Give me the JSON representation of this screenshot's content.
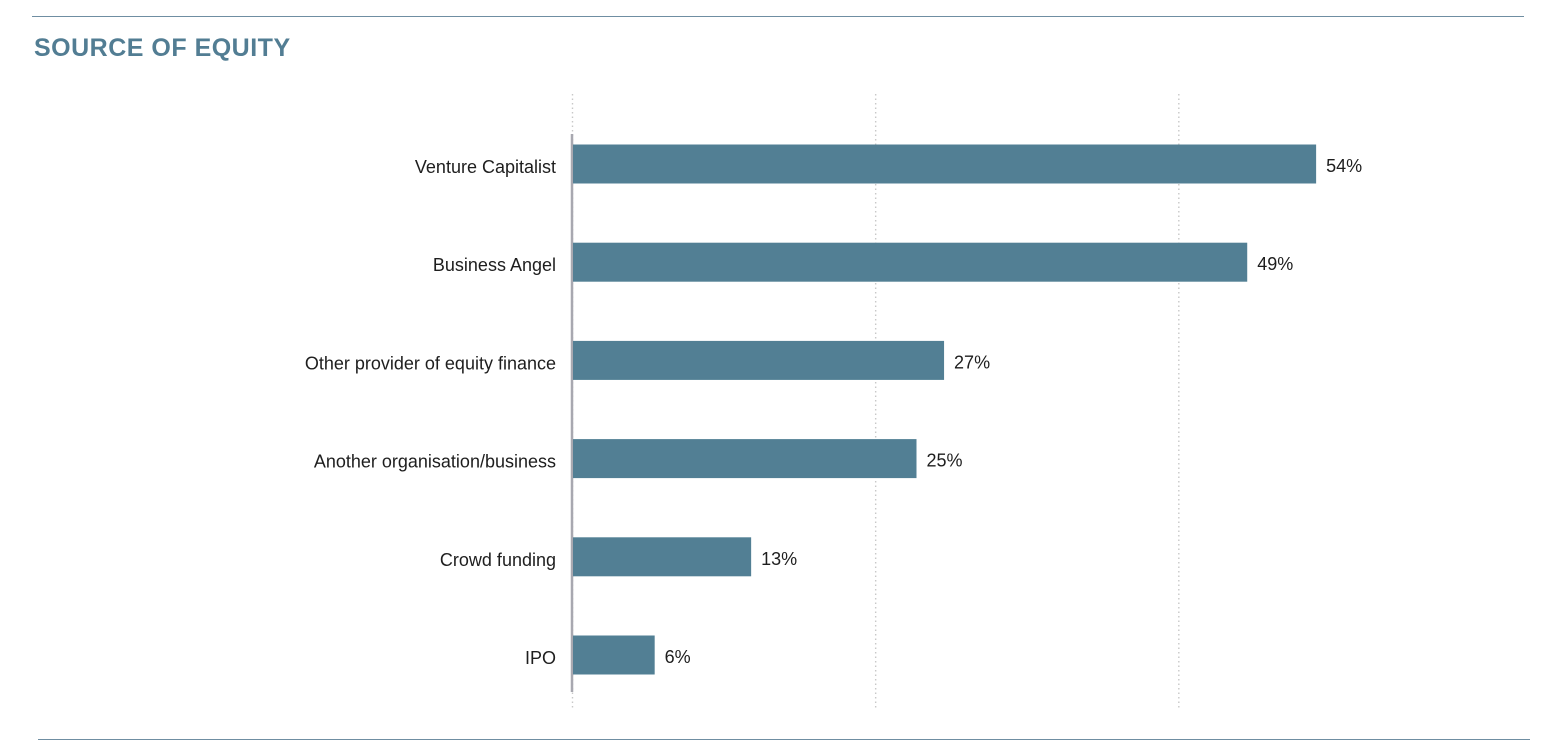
{
  "colors": {
    "accent": "#527d93",
    "bar": "#527f94",
    "rule": "#6f8ea2",
    "grid": "#c8c8c8",
    "axis": "#a8a8b0",
    "text": "#1e1e1e"
  },
  "chart_data": {
    "type": "bar",
    "orientation": "horizontal",
    "title": "SOURCE OF EQUITY",
    "categories": [
      "Venture Capitalist",
      "Business Angel",
      "Other provider of equity finance",
      "Another organisation/business",
      "Crowd funding",
      "IPO"
    ],
    "values": [
      54,
      49,
      27,
      25,
      13,
      6
    ],
    "value_labels": [
      "54%",
      "49%",
      "27%",
      "25%",
      "13%",
      "6%"
    ],
    "unit": "%",
    "xlim": [
      0,
      66
    ],
    "gridlines": [
      0,
      22,
      44
    ],
    "grid": true,
    "grid_style": "dotted",
    "legend": "none"
  }
}
